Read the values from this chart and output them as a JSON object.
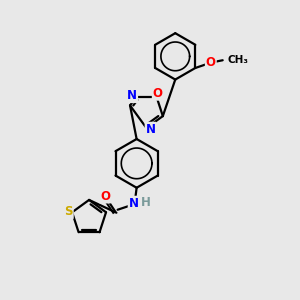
{
  "bg_color": "#e8e8e8",
  "line_color": "#000000",
  "bond_width": 1.6,
  "atom_colors": {
    "N": "#0000ff",
    "O": "#ff0000",
    "S": "#ccaa00",
    "H": "#7a9a9a",
    "C": "#000000"
  },
  "font_size_atom": 8.5,
  "font_size_small": 7.5
}
